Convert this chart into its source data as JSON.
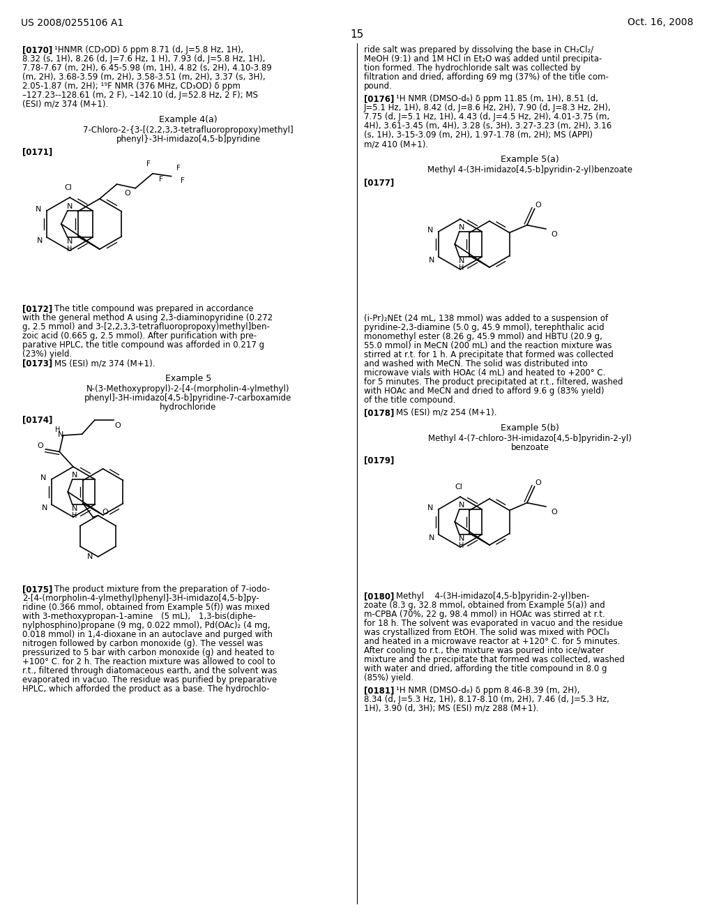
{
  "page_number": "15",
  "header_left": "US 2008/0255106 A1",
  "header_right": "Oct. 16, 2008",
  "background_color": "#ffffff",
  "text_color": "#000000"
}
